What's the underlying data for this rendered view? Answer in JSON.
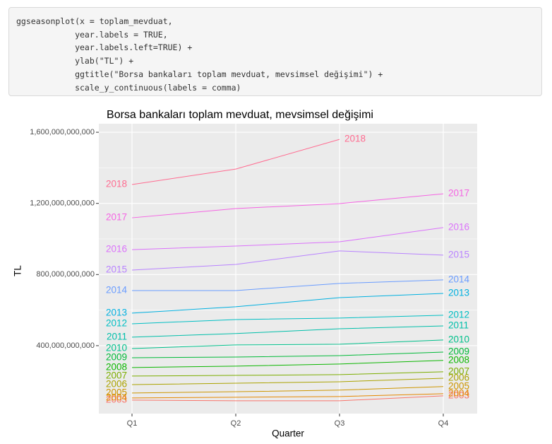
{
  "code": {
    "lines": [
      "ggseasonplot(x = toplam_mevduat,",
      "            year.labels = TRUE,",
      "            year.labels.left=TRUE) +",
      "            ylab(\"TL\") +",
      "            ggtitle(\"Borsa bankaları toplam mevduat, mevsimsel değişimi\") +",
      "            scale_y_continuous(labels = comma)"
    ]
  },
  "chart_data": {
    "type": "line",
    "title": "Borsa bankaları toplam mevduat, mevsimsel değişimi",
    "x_label": "Quarter",
    "y_label": "TL",
    "categories": [
      "Q1",
      "Q2",
      "Q3",
      "Q4"
    ],
    "ylim": [
      18000000000,
      1648000000000
    ],
    "yticks": [
      {
        "value": 400000000000,
        "label": "400,000,000,000"
      },
      {
        "value": 800000000000,
        "label": "800,000,000,000"
      },
      {
        "value": 1200000000000,
        "label": "1,200,000,000,000"
      },
      {
        "value": 1600000000000,
        "label": "1,600,000,000,000"
      }
    ],
    "grid": true,
    "series": [
      {
        "name": "2003",
        "color": "#F8766D",
        "values": [
          94000000000,
          90000000000,
          90000000000,
          118000000000
        ]
      },
      {
        "name": "2004",
        "color": "#E58700",
        "values": [
          106000000000,
          110000000000,
          114000000000,
          130000000000
        ]
      },
      {
        "name": "2005",
        "color": "#CD9600",
        "values": [
          134000000000,
          141000000000,
          150000000000,
          170000000000
        ]
      },
      {
        "name": "2006",
        "color": "#ABA300",
        "values": [
          181000000000,
          189000000000,
          197000000000,
          217000000000
        ]
      },
      {
        "name": "2007",
        "color": "#7CAE00",
        "values": [
          229000000000,
          233000000000,
          237000000000,
          253000000000
        ]
      },
      {
        "name": "2008",
        "color": "#0CB702",
        "values": [
          277000000000,
          285000000000,
          297000000000,
          317000000000
        ]
      },
      {
        "name": "2009",
        "color": "#00BA38",
        "values": [
          332000000000,
          336000000000,
          344000000000,
          364000000000
        ]
      },
      {
        "name": "2010",
        "color": "#00C08B",
        "values": [
          384000000000,
          404000000000,
          408000000000,
          432000000000
        ]
      },
      {
        "name": "2011",
        "color": "#00BFAA",
        "values": [
          448000000000,
          468000000000,
          495000000000,
          511000000000
        ]
      },
      {
        "name": "2012",
        "color": "#00BFC4",
        "values": [
          523000000000,
          547000000000,
          555000000000,
          571000000000
        ]
      },
      {
        "name": "2013",
        "color": "#00B0E0",
        "values": [
          583000000000,
          619000000000,
          670000000000,
          694000000000
        ]
      },
      {
        "name": "2014",
        "color": "#6A9CFF",
        "values": [
          710000000000,
          710000000000,
          750000000000,
          770000000000
        ]
      },
      {
        "name": "2015",
        "color": "#B983FF",
        "values": [
          825000000000,
          857000000000,
          933000000000,
          909000000000
        ]
      },
      {
        "name": "2016",
        "color": "#DB72FB",
        "values": [
          940000000000,
          960000000000,
          984000000000,
          1064000000000
        ]
      },
      {
        "name": "2017",
        "color": "#F564E3",
        "values": [
          1119000000000,
          1171000000000,
          1199000000000,
          1254000000000
        ]
      },
      {
        "name": "2018",
        "color": "#FF6C91",
        "values": [
          1306000000000,
          1393000000000,
          1560000000000,
          null
        ]
      }
    ]
  }
}
